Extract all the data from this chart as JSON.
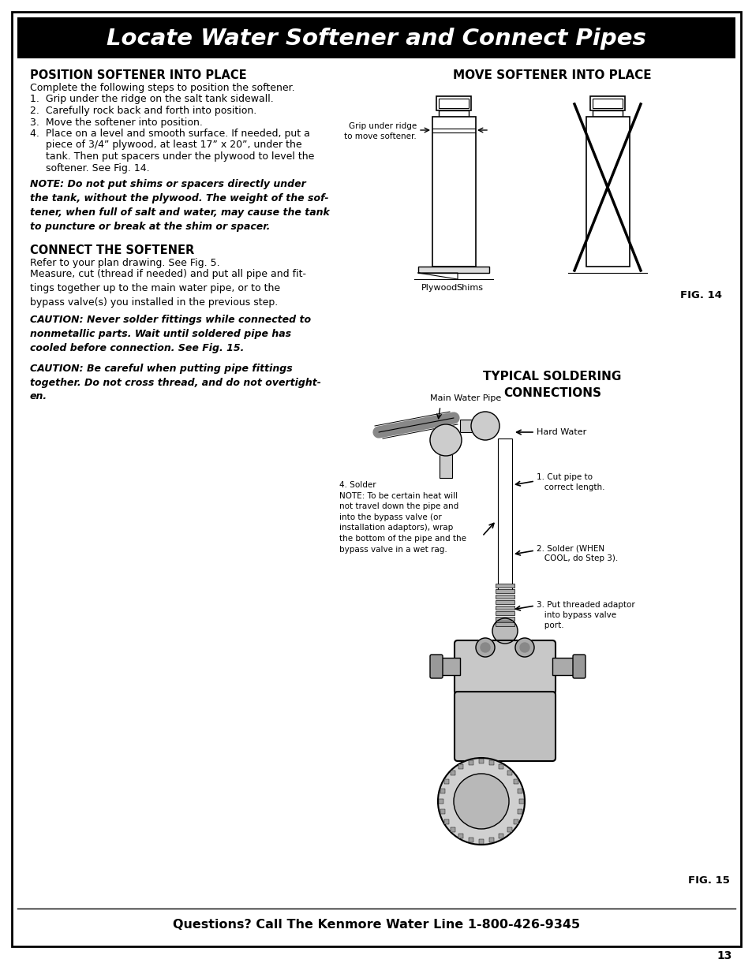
{
  "bg_color": "#ffffff",
  "border_color": "#000000",
  "header_bg": "#000000",
  "header_text": "Locate Water Softener and Connect Pipes",
  "header_text_color": "#ffffff",
  "footer_text": "Questions? Call The Kenmore Water Line 1-800-426-9345",
  "page_number": "13",
  "left_col": {
    "section1_title": "POSITION SOFTENER INTO PLACE",
    "section1_line0": "Complete the following steps to position the softener.",
    "section1_line1": "1.  Grip under the ridge on the salt tank sidewall.",
    "section1_line2": "2.  Carefully rock back and forth into position.",
    "section1_line3": "3.  Move the softener into position.",
    "section1_line4a": "4.  Place on a level and smooth surface. If needed, put a",
    "section1_line4b": "     piece of 3/4” plywood, at least 17” x 20”, under the",
    "section1_line4c": "     tank. Then put spacers under the plywood to level the",
    "section1_line4d": "     softener. See Fig. 14.",
    "note1": "NOTE: Do not put shims or spacers directly under\nthe tank, without the plywood. The weight of the sof-\ntener, when full of salt and water, may cause the tank\nto puncture or break at the shim or spacer.",
    "section2_title": "CONNECT THE SOFTENER",
    "section2_line1": "Refer to your plan drawing. See Fig. 5.",
    "section2_line2": "Measure, cut (thread if needed) and put all pipe and fit-\ntings together up to the main water pipe, or to the\nbypass valve(s) you installed in the previous step.",
    "caution1": "CAUTION: Never solder fittings while connected to\nnonmetallic parts. Wait until soldered pipe has\ncooled before connection. See Fig. 15.",
    "caution2": "CAUTION: Be careful when putting pipe fittings\ntogether. Do not cross thread, and do not overtight-\nen."
  },
  "right_col": {
    "fig14_title": "MOVE SOFTENER INTO PLACE",
    "fig14_label": "FIG. 14",
    "fig14_grip": "Grip under ridge\nto move softener.",
    "fig14_plywood": "Plywood",
    "fig14_shims": "Shims",
    "fig15_title": "TYPICAL SOLDERING\nCONNECTIONS",
    "fig15_label": "FIG. 15",
    "fig15_main_pipe": "Main Water Pipe",
    "fig15_hard_water": "Hard Water",
    "fig15_note4": "4. Solder\nNOTE: To be certain heat will\nnot travel down the pipe and\ninto the bypass valve (or\ninstallation adaptors), wrap\nthe bottom of the pipe and the\nbypass valve in a wet rag.",
    "fig15_step1": "1. Cut pipe to\n   correct length.",
    "fig15_step2": "2. Solder (WHEN\n   COOL, do Step 3).",
    "fig15_step3": "3. Put threaded adaptor\n   into bypass valve\n   port."
  }
}
